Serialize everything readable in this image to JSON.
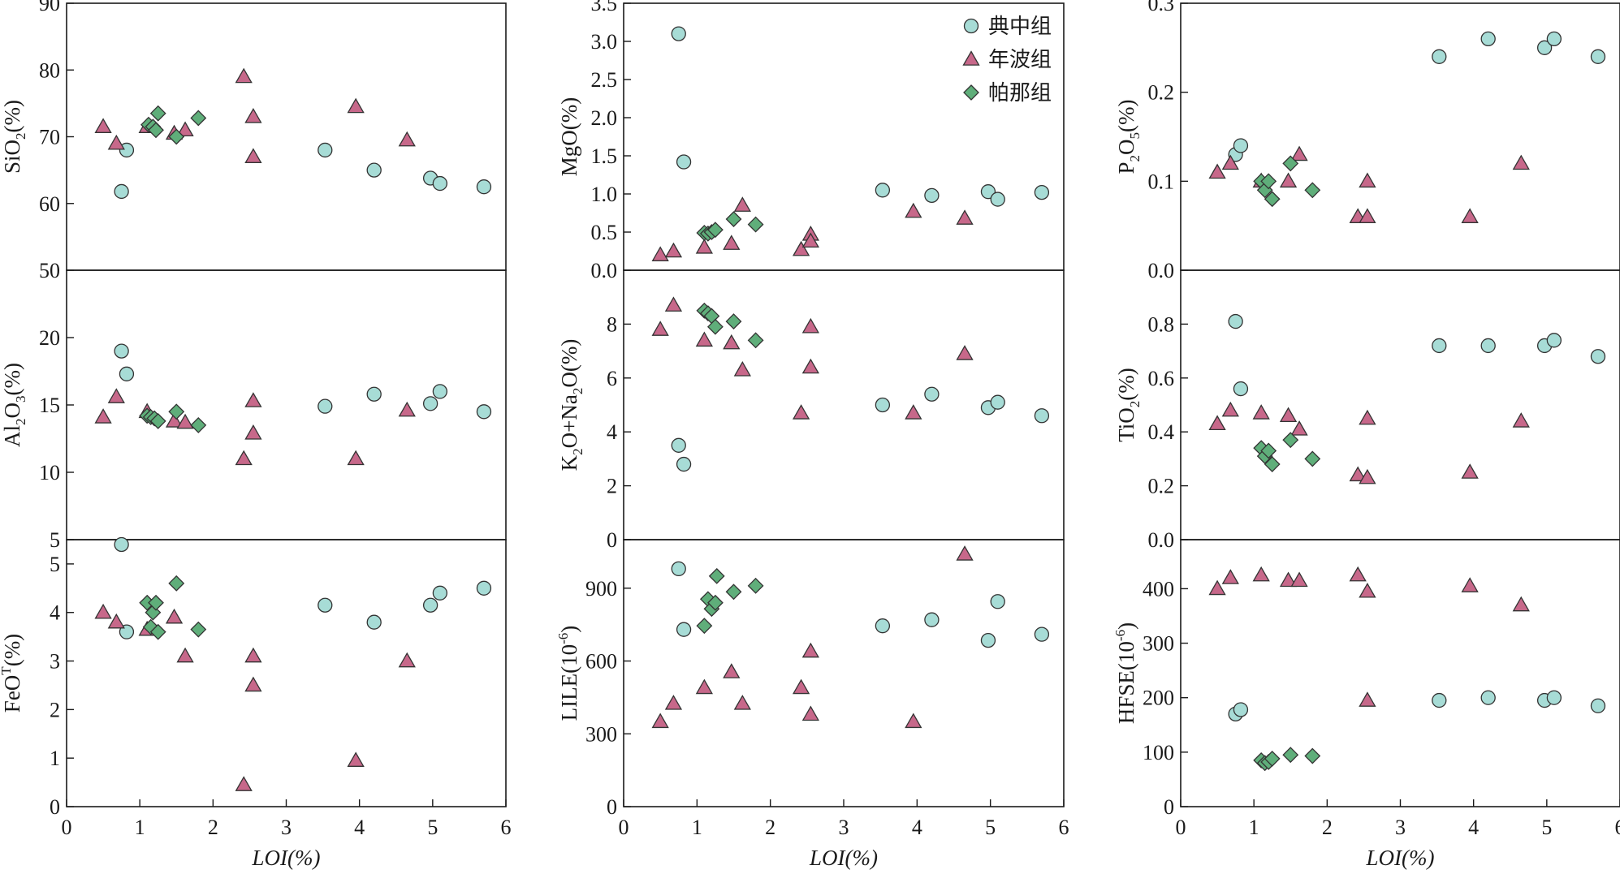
{
  "x_axis_label": "LOI(%)",
  "legend": [
    {
      "name": "典中组",
      "marker": "circle",
      "color": "#a7dcd6"
    },
    {
      "name": "年波组",
      "marker": "triangle",
      "color": "#c7688a"
    },
    {
      "name": "帕那组",
      "marker": "diamond",
      "color": "#5fae7a"
    }
  ],
  "chart_data": [
    {
      "type": "scatter",
      "id": "sio2",
      "ylabel": "SiO2(%)",
      "ylim": [
        50,
        90
      ],
      "yticks": [
        "90",
        "80",
        "70",
        "60",
        "50"
      ],
      "xlim": [
        0,
        6
      ],
      "series": [
        {
          "name": "典中组",
          "points": [
            [
              0.75,
              61.8
            ],
            [
              0.82,
              68.0
            ],
            [
              3.53,
              68.0
            ],
            [
              4.2,
              65.0
            ],
            [
              4.97,
              63.8
            ],
            [
              5.1,
              63.0
            ],
            [
              5.7,
              62.5
            ]
          ]
        },
        {
          "name": "年波组",
          "points": [
            [
              0.5,
              71.5
            ],
            [
              0.68,
              69.0
            ],
            [
              1.1,
              71.5
            ],
            [
              1.47,
              70.5
            ],
            [
              1.62,
              71.0
            ],
            [
              2.42,
              79.0
            ],
            [
              2.55,
              73.0
            ],
            [
              2.55,
              67.0
            ],
            [
              3.95,
              74.5
            ],
            [
              4.65,
              69.5
            ]
          ]
        },
        {
          "name": "帕那组",
          "points": [
            [
              1.12,
              71.8
            ],
            [
              1.18,
              71.5
            ],
            [
              1.22,
              71.0
            ],
            [
              1.25,
              73.5
            ],
            [
              1.5,
              70.0
            ],
            [
              1.8,
              72.8
            ]
          ]
        }
      ]
    },
    {
      "type": "scatter",
      "id": "mgo",
      "ylabel": "MgO(%)",
      "ylim": [
        0,
        3.5
      ],
      "yticks": [
        "3.5",
        "3.0",
        "2.5",
        "2.0",
        "1.5",
        "1.0",
        "0.5",
        "0.0"
      ],
      "xlim": [
        0,
        6
      ],
      "series": [
        {
          "name": "典中组",
          "points": [
            [
              0.75,
              3.1
            ],
            [
              0.82,
              1.42
            ],
            [
              3.53,
              1.05
            ],
            [
              4.2,
              0.98
            ],
            [
              4.97,
              1.03
            ],
            [
              5.1,
              0.93
            ],
            [
              5.7,
              1.02
            ]
          ]
        },
        {
          "name": "年波组",
          "points": [
            [
              0.5,
              0.2
            ],
            [
              0.68,
              0.25
            ],
            [
              1.1,
              0.3
            ],
            [
              1.47,
              0.35
            ],
            [
              1.62,
              0.85
            ],
            [
              2.42,
              0.27
            ],
            [
              2.55,
              0.47
            ],
            [
              2.55,
              0.38
            ],
            [
              3.95,
              0.77
            ],
            [
              4.65,
              0.68
            ]
          ]
        },
        {
          "name": "帕那组",
          "points": [
            [
              1.1,
              0.49
            ],
            [
              1.15,
              0.48
            ],
            [
              1.2,
              0.5
            ],
            [
              1.25,
              0.53
            ],
            [
              1.5,
              0.67
            ],
            [
              1.8,
              0.6
            ]
          ]
        }
      ]
    },
    {
      "type": "scatter",
      "id": "p2o5",
      "ylabel": "P2O5(%)",
      "ylim": [
        0,
        0.3
      ],
      "yticks": [
        "0.3",
        "0.2",
        "0.1",
        "0.0"
      ],
      "xlim": [
        0,
        6
      ],
      "series": [
        {
          "name": "典中组",
          "points": [
            [
              0.75,
              0.13
            ],
            [
              0.82,
              0.14
            ],
            [
              3.53,
              0.24
            ],
            [
              4.2,
              0.26
            ],
            [
              4.97,
              0.25
            ],
            [
              5.1,
              0.26
            ],
            [
              5.7,
              0.24
            ]
          ]
        },
        {
          "name": "年波组",
          "points": [
            [
              0.5,
              0.11
            ],
            [
              0.68,
              0.12
            ],
            [
              1.1,
              0.1
            ],
            [
              1.47,
              0.1
            ],
            [
              1.62,
              0.13
            ],
            [
              2.42,
              0.06
            ],
            [
              2.55,
              0.1
            ],
            [
              2.55,
              0.06
            ],
            [
              3.95,
              0.06
            ],
            [
              4.65,
              0.12
            ]
          ]
        },
        {
          "name": "帕那组",
          "points": [
            [
              1.1,
              0.1
            ],
            [
              1.15,
              0.09
            ],
            [
              1.2,
              0.1
            ],
            [
              1.25,
              0.08
            ],
            [
              1.5,
              0.12
            ],
            [
              1.8,
              0.09
            ]
          ]
        }
      ]
    },
    {
      "type": "scatter",
      "id": "al2o3",
      "ylabel": "Al2O3(%)",
      "ylim": [
        5,
        25
      ],
      "yticks": [
        "20",
        "15",
        "10",
        "5"
      ],
      "xlim": [
        0,
        6
      ],
      "series": [
        {
          "name": "典中组",
          "points": [
            [
              0.75,
              19.0
            ],
            [
              0.82,
              17.3
            ],
            [
              3.53,
              14.9
            ],
            [
              4.2,
              15.8
            ],
            [
              4.97,
              15.1
            ],
            [
              5.1,
              16.0
            ],
            [
              5.7,
              14.5
            ]
          ]
        },
        {
          "name": "年波组",
          "points": [
            [
              0.5,
              14.1
            ],
            [
              0.68,
              15.6
            ],
            [
              1.1,
              14.5
            ],
            [
              1.47,
              13.8
            ],
            [
              1.62,
              13.7
            ],
            [
              2.42,
              11.0
            ],
            [
              2.55,
              15.3
            ],
            [
              2.55,
              12.9
            ],
            [
              3.95,
              11.0
            ],
            [
              4.65,
              14.6
            ]
          ]
        },
        {
          "name": "帕那组",
          "points": [
            [
              1.1,
              14.2
            ],
            [
              1.15,
              14.1
            ],
            [
              1.2,
              14.0
            ],
            [
              1.25,
              13.8
            ],
            [
              1.5,
              14.5
            ],
            [
              1.8,
              13.5
            ]
          ]
        }
      ]
    },
    {
      "type": "scatter",
      "id": "k2o_na2o",
      "ylabel": "K2O+Na2O(%)",
      "ylim": [
        0,
        10
      ],
      "yticks": [
        "8",
        "6",
        "4",
        "2",
        "0"
      ],
      "xlim": [
        0,
        6
      ],
      "series": [
        {
          "name": "典中组",
          "points": [
            [
              0.75,
              3.5
            ],
            [
              0.82,
              2.8
            ],
            [
              3.53,
              5.0
            ],
            [
              4.2,
              5.4
            ],
            [
              4.97,
              4.9
            ],
            [
              5.1,
              5.1
            ],
            [
              5.7,
              4.6
            ]
          ]
        },
        {
          "name": "年波组",
          "points": [
            [
              0.5,
              7.8
            ],
            [
              0.68,
              8.7
            ],
            [
              1.1,
              7.4
            ],
            [
              1.47,
              7.3
            ],
            [
              1.62,
              6.3
            ],
            [
              2.42,
              4.7
            ],
            [
              2.55,
              7.9
            ],
            [
              2.55,
              6.4
            ],
            [
              3.95,
              4.7
            ],
            [
              4.65,
              6.9
            ]
          ]
        },
        {
          "name": "帕那组",
          "points": [
            [
              1.1,
              8.5
            ],
            [
              1.15,
              8.4
            ],
            [
              1.2,
              8.3
            ],
            [
              1.25,
              7.9
            ],
            [
              1.5,
              8.1
            ],
            [
              1.8,
              7.4
            ]
          ]
        }
      ]
    },
    {
      "type": "scatter",
      "id": "tio2",
      "ylabel": "TiO2(%)",
      "ylim": [
        0,
        1.0
      ],
      "yticks": [
        "0.8",
        "0.6",
        "0.4",
        "0.2",
        "0.0"
      ],
      "xlim": [
        0,
        6
      ],
      "series": [
        {
          "name": "典中组",
          "points": [
            [
              0.75,
              0.81
            ],
            [
              0.82,
              0.56
            ],
            [
              3.53,
              0.72
            ],
            [
              4.2,
              0.72
            ],
            [
              4.97,
              0.72
            ],
            [
              5.1,
              0.74
            ],
            [
              5.7,
              0.68
            ]
          ]
        },
        {
          "name": "年波组",
          "points": [
            [
              0.5,
              0.43
            ],
            [
              0.68,
              0.48
            ],
            [
              1.1,
              0.47
            ],
            [
              1.47,
              0.46
            ],
            [
              1.62,
              0.41
            ],
            [
              2.42,
              0.24
            ],
            [
              2.55,
              0.45
            ],
            [
              2.55,
              0.23
            ],
            [
              3.95,
              0.25
            ],
            [
              4.65,
              0.44
            ]
          ]
        },
        {
          "name": "帕那组",
          "points": [
            [
              1.1,
              0.34
            ],
            [
              1.15,
              0.31
            ],
            [
              1.2,
              0.33
            ],
            [
              1.25,
              0.28
            ],
            [
              1.5,
              0.37
            ],
            [
              1.8,
              0.3
            ]
          ]
        }
      ]
    },
    {
      "type": "scatter",
      "id": "feot",
      "ylabel": "FeOT(%)",
      "ylim": [
        0,
        5.5
      ],
      "yticks": [
        "5",
        "4",
        "3",
        "2",
        "1",
        "0"
      ],
      "xlim": [
        0,
        6
      ],
      "series": [
        {
          "name": "典中组",
          "points": [
            [
              0.75,
              5.4
            ],
            [
              0.82,
              3.6
            ],
            [
              3.53,
              4.15
            ],
            [
              4.2,
              3.8
            ],
            [
              4.97,
              4.15
            ],
            [
              5.1,
              4.4
            ],
            [
              5.7,
              4.5
            ]
          ]
        },
        {
          "name": "年波组",
          "points": [
            [
              0.5,
              4.0
            ],
            [
              0.68,
              3.8
            ],
            [
              1.1,
              3.65
            ],
            [
              1.47,
              3.9
            ],
            [
              1.62,
              3.1
            ],
            [
              2.42,
              0.45
            ],
            [
              2.55,
              3.1
            ],
            [
              2.55,
              2.5
            ],
            [
              3.95,
              0.95
            ],
            [
              4.65,
              3.0
            ]
          ]
        },
        {
          "name": "帕那组",
          "points": [
            [
              1.1,
              4.2
            ],
            [
              1.15,
              3.7
            ],
            [
              1.18,
              4.0
            ],
            [
              1.22,
              4.2
            ],
            [
              1.25,
              3.6
            ],
            [
              1.5,
              4.6
            ],
            [
              1.8,
              3.65
            ]
          ]
        }
      ]
    },
    {
      "type": "scatter",
      "id": "lile",
      "ylabel": "LILE(10-6)",
      "ylim": [
        0,
        1100
      ],
      "yticks": [
        "900",
        "600",
        "300",
        "0"
      ],
      "xlim": [
        0,
        6
      ],
      "series": [
        {
          "name": "典中组",
          "points": [
            [
              0.75,
              980
            ],
            [
              0.82,
              730
            ],
            [
              3.53,
              745
            ],
            [
              4.2,
              770
            ],
            [
              4.97,
              685
            ],
            [
              5.1,
              845
            ],
            [
              5.7,
              710
            ]
          ]
        },
        {
          "name": "年波组",
          "points": [
            [
              0.5,
              350
            ],
            [
              0.68,
              425
            ],
            [
              1.1,
              490
            ],
            [
              1.47,
              555
            ],
            [
              1.62,
              425
            ],
            [
              2.42,
              490
            ],
            [
              2.55,
              640
            ],
            [
              2.55,
              380
            ],
            [
              3.95,
              350
            ],
            [
              4.65,
              1040
            ]
          ]
        },
        {
          "name": "帕那组",
          "points": [
            [
              1.1,
              745
            ],
            [
              1.15,
              855
            ],
            [
              1.2,
              815
            ],
            [
              1.25,
              840
            ],
            [
              1.27,
              950
            ],
            [
              1.5,
              885
            ],
            [
              1.8,
              910
            ]
          ]
        }
      ]
    },
    {
      "type": "scatter",
      "id": "hfse",
      "ylabel": "HFSE(10-6)",
      "ylim": [
        0,
        490
      ],
      "yticks": [
        "400",
        "300",
        "200",
        "100",
        "0"
      ],
      "xlim": [
        0,
        6
      ],
      "series": [
        {
          "name": "典中组",
          "points": [
            [
              0.75,
              170
            ],
            [
              0.82,
              178
            ],
            [
              3.53,
              195
            ],
            [
              4.2,
              200
            ],
            [
              4.97,
              195
            ],
            [
              5.1,
              200
            ],
            [
              5.7,
              185
            ]
          ]
        },
        {
          "name": "年波组",
          "points": [
            [
              0.5,
              400
            ],
            [
              0.68,
              420
            ],
            [
              1.1,
              425
            ],
            [
              1.47,
              415
            ],
            [
              1.62,
              415
            ],
            [
              2.42,
              425
            ],
            [
              2.55,
              395
            ],
            [
              2.55,
              195
            ],
            [
              3.95,
              405
            ],
            [
              4.65,
              370
            ]
          ]
        },
        {
          "name": "帕那组",
          "points": [
            [
              1.1,
              85
            ],
            [
              1.15,
              80
            ],
            [
              1.2,
              82
            ],
            [
              1.25,
              88
            ],
            [
              1.5,
              95
            ],
            [
              1.8,
              93
            ]
          ]
        }
      ]
    }
  ]
}
